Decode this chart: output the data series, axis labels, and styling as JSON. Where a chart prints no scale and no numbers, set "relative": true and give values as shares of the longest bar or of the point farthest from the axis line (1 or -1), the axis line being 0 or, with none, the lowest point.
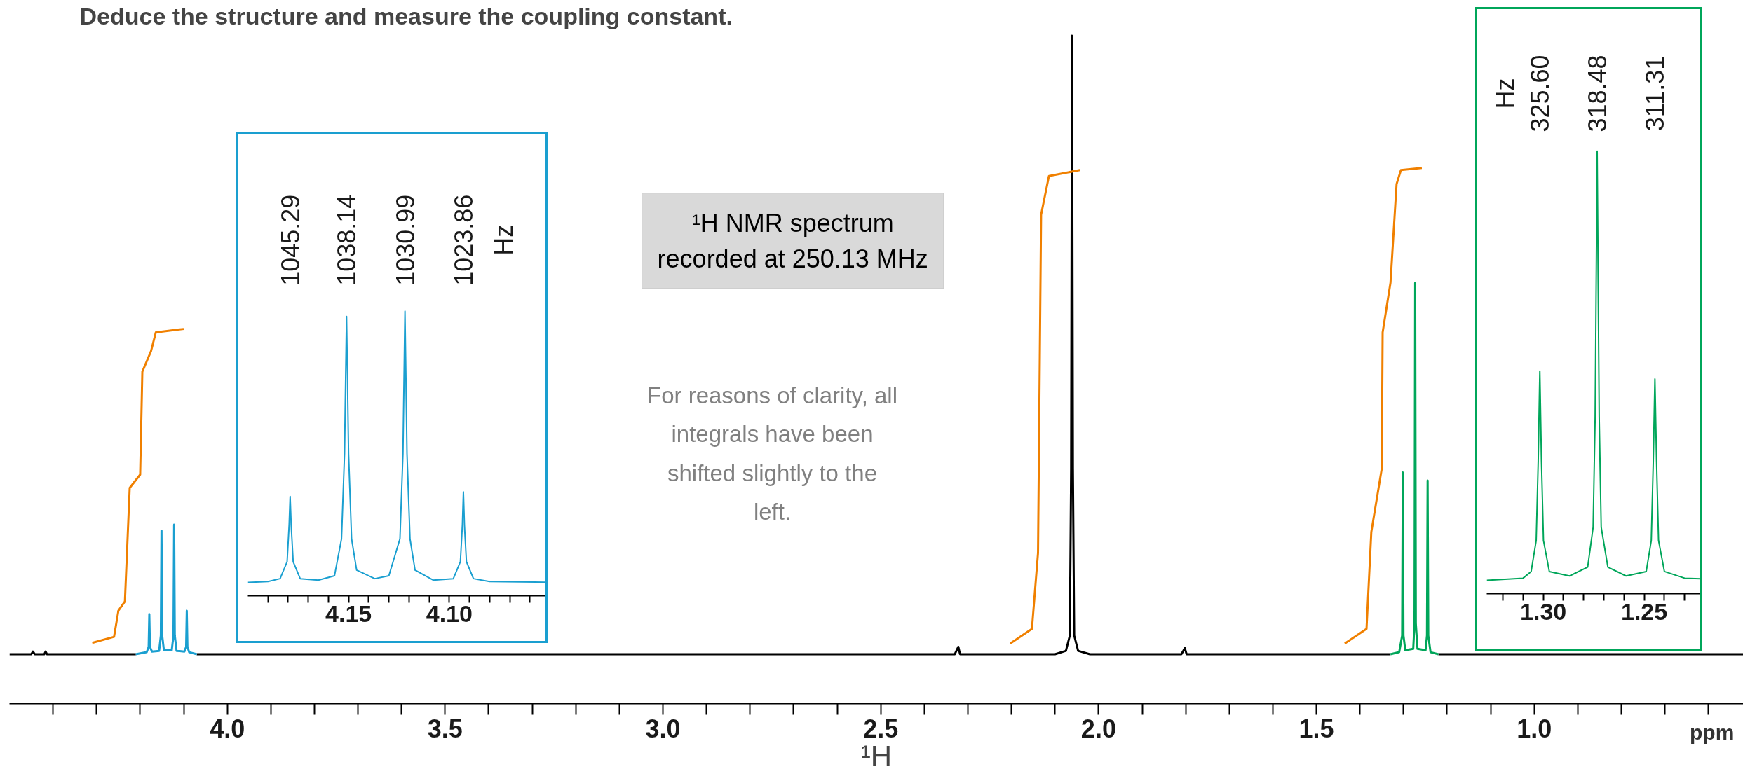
{
  "chart_data": [
    {
      "type": "line",
      "title": "Deduce the structure and measure the coupling constant.",
      "xlabel": "¹H",
      "relative": true,
      "xlim": [
        4.5,
        0.52
      ],
      "xticks": [
        {
          "value": 4.4,
          "label": null
        },
        {
          "value": 4.3,
          "label": null
        },
        {
          "value": 4.2,
          "label": null
        },
        {
          "value": 4.1,
          "label": null
        },
        {
          "value": 4.0,
          "label": "4.0"
        },
        {
          "value": 3.9,
          "label": null
        },
        {
          "value": 3.8,
          "label": null
        },
        {
          "value": 3.7,
          "label": null
        },
        {
          "value": 3.6,
          "label": null
        },
        {
          "value": 3.5,
          "label": "3.5"
        },
        {
          "value": 3.4,
          "label": null
        },
        {
          "value": 3.3,
          "label": null
        },
        {
          "value": 3.2,
          "label": null
        },
        {
          "value": 3.1,
          "label": null
        },
        {
          "value": 3.0,
          "label": "3.0"
        },
        {
          "value": 2.9,
          "label": null
        },
        {
          "value": 2.8,
          "label": null
        },
        {
          "value": 2.7,
          "label": null
        },
        {
          "value": 2.6,
          "label": null
        },
        {
          "value": 2.5,
          "label": "2.5"
        },
        {
          "value": 2.4,
          "label": null
        },
        {
          "value": 2.3,
          "label": null
        },
        {
          "value": 2.2,
          "label": null
        },
        {
          "value": 2.1,
          "label": null
        },
        {
          "value": 2.0,
          "label": "2.0"
        },
        {
          "value": 1.9,
          "label": null
        },
        {
          "value": 1.8,
          "label": null
        },
        {
          "value": 1.7,
          "label": null
        },
        {
          "value": 1.6,
          "label": null
        },
        {
          "value": 1.5,
          "label": "1.5"
        },
        {
          "value": 1.4,
          "label": null
        },
        {
          "value": 1.3,
          "label": null
        },
        {
          "value": 1.2,
          "label": null
        },
        {
          "value": 1.1,
          "label": null
        },
        {
          "value": 1.0,
          "label": "1.0"
        },
        {
          "value": 0.9,
          "label": null
        },
        {
          "value": 0.8,
          "label": null
        },
        {
          "value": 0.7,
          "label": null
        },
        {
          "value": 0.6,
          "label": null
        }
      ],
      "annotations": [
        "¹H NMR spectrum\nrecorded at 250.13 MHz",
        "For reasons of clarity, all\nintegrals have been\nshifted slightly to the\nleft.",
        "ppm"
      ],
      "series": [
        {
          "color": "#000000",
          "x": [
            4.5,
            4.45,
            4.446,
            4.442,
            4.42,
            4.417,
            4.414,
            4.21,
            4.14,
            4.07,
            2.33,
            2.322,
            2.318,
            2.31,
            2.1,
            2.075,
            2.066,
            2.063,
            2.061,
            2.059,
            2.056,
            2.047,
            2.02,
            1.81,
            1.802,
            1.798,
            1.79,
            1.33,
            1.28,
            1.22,
            0.52
          ],
          "values": [
            0.074,
            0.074,
            0.078,
            0.074,
            0.074,
            0.078,
            0.074,
            0.074,
            null,
            0.074,
            0.074,
            0.085,
            0.074,
            0.074,
            0.074,
            0.079,
            0.102,
            0.352,
            1.0,
            0.352,
            0.102,
            0.079,
            0.074,
            0.074,
            0.083,
            0.074,
            0.074,
            0.074,
            null,
            0.074,
            0.074
          ]
        },
        {
          "color": "#1a9fd0",
          "x": [
            4.21,
            4.185,
            4.1805,
            4.179,
            4.1775,
            4.173,
            4.1565,
            4.1525,
            4.151,
            4.1495,
            4.1455,
            4.1275,
            4.1235,
            4.122,
            4.1205,
            4.1165,
            4.0985,
            4.0945,
            4.093,
            4.0915,
            4.0875,
            4.07
          ],
          "values": [
            0.074,
            0.077,
            0.085,
            0.134,
            0.085,
            0.078,
            0.079,
            0.102,
            0.259,
            0.102,
            0.08,
            0.08,
            0.102,
            0.268,
            0.102,
            0.079,
            0.078,
            0.085,
            0.139,
            0.085,
            0.077,
            0.074
          ]
        },
        {
          "color": "#00a65a",
          "x": [
            1.33,
            1.31,
            1.3032,
            1.3017,
            1.3002,
            1.296,
            1.2778,
            1.2748,
            1.2733,
            1.2718,
            1.268,
            1.2495,
            1.2462,
            1.2447,
            1.2432,
            1.238,
            1.22
          ],
          "values": [
            0.074,
            0.077,
            0.102,
            0.346,
            0.102,
            0.08,
            0.082,
            0.12,
            0.63,
            0.12,
            0.082,
            0.08,
            0.102,
            0.334,
            0.102,
            0.077,
            0.074
          ]
        },
        {
          "color": "#f08000",
          "x": [
            4.31,
            4.26,
            4.25,
            4.235,
            4.224,
            4.2,
            4.195,
            4.175,
            4.164,
            4.1
          ],
          "values": [
            0.091,
            0.1,
            0.139,
            0.153,
            0.323,
            0.343,
            0.497,
            0.528,
            0.556,
            0.561
          ]
        },
        {
          "color": "#f08000",
          "x": [
            2.203,
            2.153,
            2.139,
            2.132,
            2.114,
            2.043
          ],
          "values": [
            0.09,
            0.112,
            0.226,
            0.732,
            0.79,
            0.799
          ]
        },
        {
          "color": "#f08000",
          "x": [
            1.435,
            1.385,
            1.374,
            1.35,
            1.348,
            1.33,
            1.316,
            1.306,
            1.258
          ],
          "values": [
            0.09,
            0.112,
            0.257,
            0.352,
            0.556,
            0.63,
            0.778,
            0.799,
            0.802
          ]
        }
      ]
    },
    {
      "type": "line",
      "relative": true,
      "xlim": [
        4.2,
        4.05
      ],
      "xticks": [
        {
          "value": 4.19,
          "label": null
        },
        {
          "value": 4.18,
          "label": null
        },
        {
          "value": 4.17,
          "label": null
        },
        {
          "value": 4.16,
          "label": null
        },
        4.15,
        {
          "value": 4.14,
          "label": null
        },
        {
          "value": 4.13,
          "label": null
        },
        {
          "value": 4.12,
          "label": null
        },
        {
          "value": 4.11,
          "label": null
        },
        {
          "value": 4.1,
          "label": "4.10"
        },
        {
          "value": 4.09,
          "label": null
        },
        {
          "value": 4.08,
          "label": null
        },
        {
          "value": 4.07,
          "label": null
        },
        {
          "value": 4.06,
          "label": null
        }
      ],
      "annotations": [
        "1045.29",
        "1038.14",
        "1030.99",
        "1023.86",
        "Hz"
      ],
      "series": [
        {
          "color": "#1a9fd0",
          "x": [
            4.2,
            4.19,
            4.184,
            4.1805,
            4.1795,
            4.179,
            4.1785,
            4.1775,
            4.174,
            4.165,
            4.157,
            4.1535,
            4.152,
            4.151,
            4.15,
            4.1485,
            4.146,
            4.137,
            4.13,
            4.1245,
            4.123,
            4.122,
            4.121,
            4.1195,
            4.117,
            4.108,
            4.098,
            4.0945,
            4.0935,
            4.093,
            4.0925,
            4.0915,
            4.088,
            4.08,
            4.05
          ],
          "values": [
            0.047,
            0.05,
            0.06,
            0.12,
            0.25,
            0.349,
            0.25,
            0.12,
            0.06,
            0.055,
            0.07,
            0.2,
            0.5,
            0.982,
            0.5,
            0.2,
            0.09,
            0.06,
            0.07,
            0.2,
            0.5,
            1.0,
            0.5,
            0.2,
            0.09,
            0.055,
            0.06,
            0.12,
            0.25,
            0.365,
            0.25,
            0.12,
            0.06,
            0.05,
            0.047
          ]
        }
      ]
    },
    {
      "type": "line",
      "relative": true,
      "xlim": [
        1.328,
        1.22
      ],
      "xticks": [
        {
          "value": 1.32,
          "label": null
        },
        {
          "value": 1.31,
          "label": null
        },
        {
          "value": 1.3,
          "label": "1.30"
        },
        {
          "value": 1.29,
          "label": null
        },
        {
          "value": 1.28,
          "label": null
        },
        {
          "value": 1.27,
          "label": null
        },
        {
          "value": 1.26,
          "label": null
        },
        1.25,
        {
          "value": 1.24,
          "label": null
        },
        {
          "value": 1.23,
          "label": null
        }
      ],
      "annotations": [
        "Hz",
        "325.60",
        "318.48",
        "311.31"
      ],
      "series": [
        {
          "color": "#00a65a",
          "x": [
            1.328,
            1.31,
            1.306,
            1.3035,
            1.3025,
            1.3017,
            1.3009,
            1.2999,
            1.297,
            1.287,
            1.278,
            1.2753,
            1.2743,
            1.2733,
            1.2723,
            1.2713,
            1.268,
            1.259,
            1.249,
            1.2465,
            1.2455,
            1.2447,
            1.2439,
            1.2429,
            1.24,
            1.23,
            1.22
          ],
          "values": [
            0.03,
            0.035,
            0.05,
            0.12,
            0.3,
            0.503,
            0.3,
            0.12,
            0.05,
            0.04,
            0.06,
            0.15,
            0.4,
            1.0,
            0.4,
            0.15,
            0.06,
            0.04,
            0.05,
            0.12,
            0.3,
            0.485,
            0.3,
            0.12,
            0.05,
            0.035,
            0.033
          ]
        }
      ]
    }
  ]
}
